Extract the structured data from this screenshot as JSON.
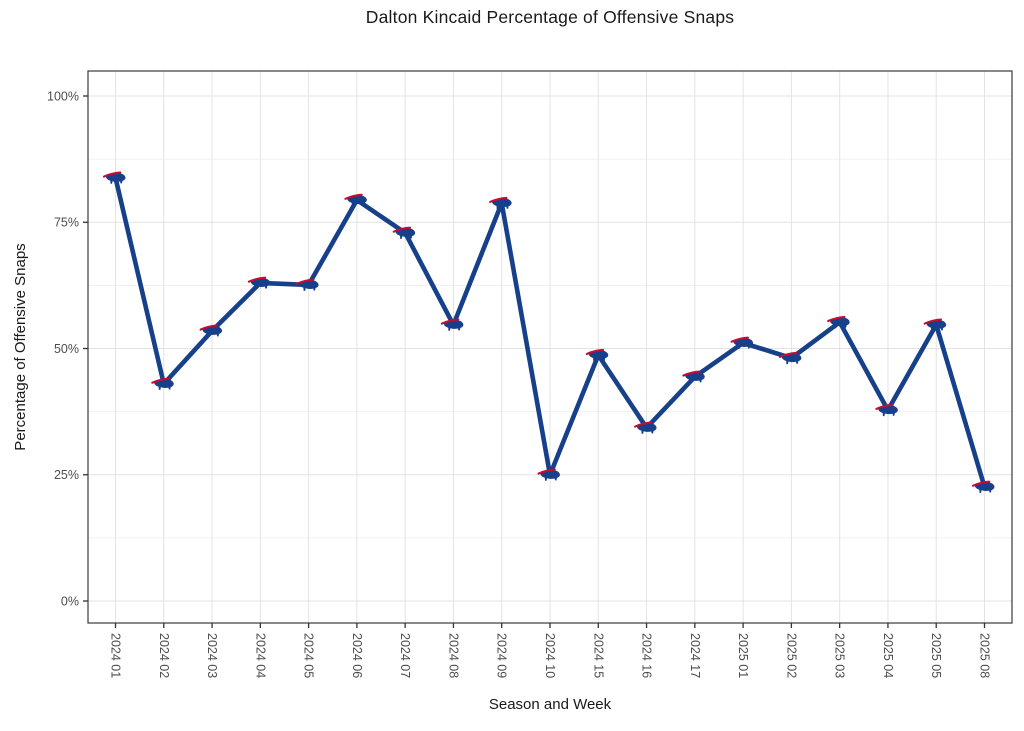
{
  "chart_data": {
    "type": "line",
    "title": "Dalton Kincaid Percentage of Offensive Snaps",
    "xlabel": "Season and Week",
    "ylabel": "Percentage of Offensive Snaps",
    "categories": [
      "2024 01",
      "2024 02",
      "2024 03",
      "2024 04",
      "2024 05",
      "2024 06",
      "2024 07",
      "2024 08",
      "2024 09",
      "2024 10",
      "2024 15",
      "2024 16",
      "2024 17",
      "2025 01",
      "2025 02",
      "2025 03",
      "2025 04",
      "2025 05",
      "2025 08"
    ],
    "values": [
      83.8,
      43.0,
      53.5,
      63.0,
      62.6,
      79.4,
      72.9,
      54.7,
      78.8,
      25.0,
      48.7,
      34.3,
      44.4,
      51.1,
      48.1,
      55.2,
      37.8,
      54.7,
      22.6
    ],
    "y_axis": {
      "tick_labels": [
        "0%",
        "25%",
        "50%",
        "75%",
        "100%"
      ],
      "tick_values": [
        0,
        25,
        50,
        75,
        100
      ],
      "minor_tick_values": [
        12.5,
        37.5,
        62.5,
        87.5
      ],
      "range": [
        0,
        100
      ]
    },
    "grid": "on",
    "legend": "none",
    "marker": "buffalo-bills-logo",
    "colors": {
      "line": "#17408b",
      "marker_body": "#17408b",
      "marker_streak": "#c60c30",
      "grid_major": "#e3e3e3",
      "grid_minor": "#f1f1f1",
      "panel_border": "#3a3a3a",
      "tick_mark": "#333333",
      "tick_label": "#4d4d4d",
      "title_text": "#1a1a1a"
    }
  }
}
